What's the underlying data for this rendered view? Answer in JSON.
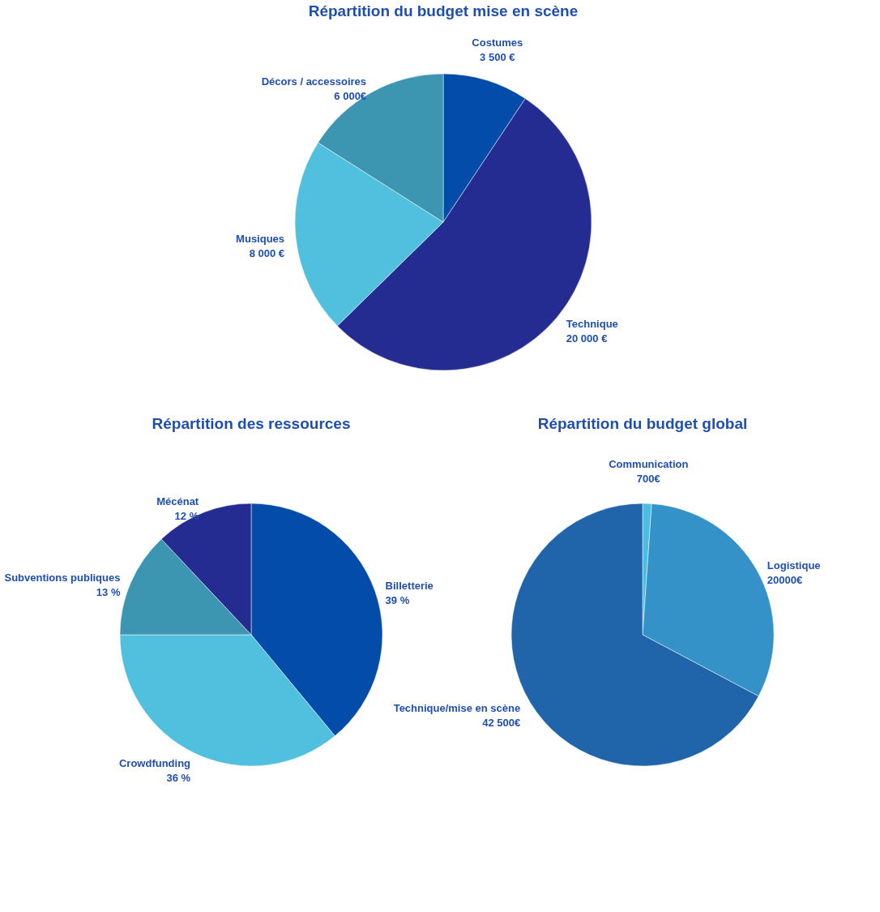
{
  "chart_data": [
    {
      "type": "pie",
      "title": "Répartition du budget mise en scène",
      "categories": [
        "Costumes",
        "Technique",
        "Musiques",
        "Décors / accessoires"
      ],
      "values": [
        3500,
        20000,
        8000,
        6000
      ],
      "value_labels": [
        "3 500 €",
        "20 000 €",
        "8 000 €",
        "6 000€"
      ],
      "colors": [
        "#034ca9",
        "#242c91",
        "#50c0de",
        "#3d96b1"
      ],
      "legend": false
    },
    {
      "type": "pie",
      "title": "Répartition des ressources",
      "categories": [
        "Billetterie",
        "Crowdfunding",
        "Subventions publiques",
        "Mécénat"
      ],
      "values": [
        39,
        36,
        13,
        12
      ],
      "value_labels": [
        "39 %",
        "36 %",
        "13 %",
        "12 %"
      ],
      "colors": [
        "#034ca9",
        "#50c0de",
        "#3d96b1",
        "#242c91"
      ],
      "legend": false
    },
    {
      "type": "pie",
      "title": "Répartition du budget global",
      "categories": [
        "Communication",
        "Logistique",
        "Technique/mise en scène"
      ],
      "values": [
        700,
        20000,
        42500
      ],
      "value_labels": [
        "700€",
        "20000€",
        "42 500€"
      ],
      "colors": [
        "#4cbde0",
        "#3592c8",
        "#2065aa"
      ],
      "legend": false
    }
  ]
}
